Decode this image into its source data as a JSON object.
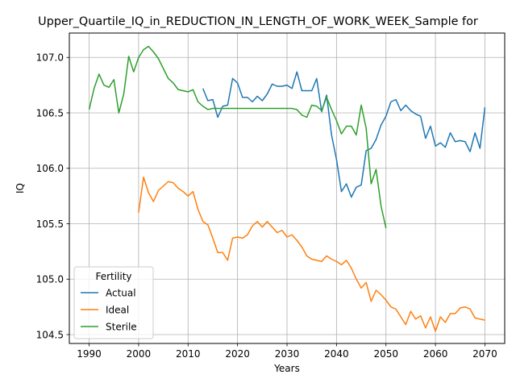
{
  "chart_data": {
    "type": "line",
    "title": "Upper_Quartile_IQ_in_REDUCTION_IN_LENGTH_OF_WORK_WEEK_Sample for",
    "xlabel": "Years",
    "ylabel": "IQ",
    "xlim": [
      1986,
      2074
    ],
    "ylim": [
      104.42,
      107.22
    ],
    "xticks": [
      1990,
      2000,
      2010,
      2020,
      2030,
      2040,
      2050,
      2060,
      2070
    ],
    "yticks": [
      104.5,
      105.0,
      105.5,
      106.0,
      106.5,
      107.0
    ],
    "ytick_labels": [
      "104.5",
      "105.0",
      "105.5",
      "106.0",
      "106.5",
      "107.0"
    ],
    "grid": true,
    "legend": {
      "title": "Fertility",
      "placement": "lower-left"
    },
    "series": [
      {
        "name": "Actual",
        "color": "#1f77b4",
        "x": [
          2013,
          2014,
          2015,
          2016,
          2017,
          2018,
          2019,
          2020,
          2021,
          2022,
          2023,
          2024,
          2025,
          2026,
          2027,
          2028,
          2029,
          2030,
          2031,
          2032,
          2033,
          2034,
          2035,
          2036,
          2037,
          2038,
          2039,
          2040,
          2041,
          2042,
          2043,
          2044,
          2045,
          2046,
          2047,
          2048,
          2049,
          2050,
          2051,
          2052,
          2053,
          2054,
          2055,
          2056,
          2057,
          2058,
          2059,
          2060,
          2061,
          2062,
          2063,
          2064,
          2065,
          2066,
          2067,
          2068,
          2069,
          2070
        ],
        "values": [
          106.72,
          106.61,
          106.62,
          106.46,
          106.56,
          106.57,
          106.81,
          106.77,
          106.64,
          106.64,
          106.6,
          106.65,
          106.61,
          106.67,
          106.76,
          106.74,
          106.74,
          106.75,
          106.72,
          106.87,
          106.7,
          106.7,
          106.7,
          106.81,
          106.51,
          106.66,
          106.3,
          106.08,
          105.79,
          105.86,
          105.74,
          105.83,
          105.85,
          106.16,
          106.18,
          106.26,
          106.39,
          106.47,
          106.6,
          106.62,
          106.52,
          106.57,
          106.52,
          106.49,
          106.47,
          106.27,
          106.38,
          106.2,
          106.23,
          106.19,
          106.32,
          106.24,
          106.25,
          106.24,
          106.15,
          106.32,
          106.18,
          106.55
        ]
      },
      {
        "name": "Ideal",
        "color": "#ff7f0e",
        "x": [
          2000,
          2001,
          2002,
          2003,
          2004,
          2005,
          2006,
          2007,
          2008,
          2009,
          2010,
          2011,
          2012,
          2013,
          2014,
          2015,
          2016,
          2017,
          2018,
          2019,
          2020,
          2021,
          2022,
          2023,
          2024,
          2025,
          2026,
          2027,
          2028,
          2029,
          2030,
          2031,
          2032,
          2033,
          2034,
          2035,
          2036,
          2037,
          2038,
          2039,
          2040,
          2041,
          2042,
          2043,
          2044,
          2045,
          2046,
          2047,
          2048,
          2049,
          2050,
          2051,
          2052,
          2053,
          2054,
          2055,
          2056,
          2057,
          2058,
          2059,
          2060,
          2061,
          2062,
          2063,
          2064,
          2065,
          2066,
          2067,
          2068,
          2069,
          2070
        ],
        "values": [
          105.6,
          105.92,
          105.78,
          105.7,
          105.8,
          105.84,
          105.88,
          105.87,
          105.82,
          105.79,
          105.75,
          105.79,
          105.63,
          105.52,
          105.49,
          105.37,
          105.24,
          105.24,
          105.17,
          105.37,
          105.38,
          105.37,
          105.4,
          105.48,
          105.52,
          105.47,
          105.52,
          105.47,
          105.42,
          105.44,
          105.38,
          105.4,
          105.35,
          105.29,
          105.21,
          105.18,
          105.17,
          105.16,
          105.21,
          105.18,
          105.16,
          105.13,
          105.17,
          105.1,
          105.0,
          104.92,
          104.97,
          104.8,
          104.9,
          104.86,
          104.81,
          104.75,
          104.73,
          104.66,
          104.59,
          104.71,
          104.64,
          104.67,
          104.56,
          104.66,
          104.53,
          104.66,
          104.61,
          104.69,
          104.69,
          104.74,
          104.75,
          104.73,
          104.65,
          104.64,
          104.63
        ]
      },
      {
        "name": "Sterile",
        "color": "#2ca02c",
        "x": [
          1990,
          1991,
          1992,
          1993,
          1994,
          1995,
          1996,
          1997,
          1998,
          1999,
          2000,
          2001,
          2002,
          2003,
          2004,
          2005,
          2006,
          2007,
          2008,
          2009,
          2010,
          2011,
          2012,
          2013,
          2014,
          2015,
          2016,
          2017,
          2018,
          2019,
          2020,
          2021,
          2022,
          2023,
          2024,
          2025,
          2026,
          2027,
          2028,
          2029,
          2030,
          2031,
          2032,
          2033,
          2034,
          2035,
          2036,
          2037,
          2038,
          2039,
          2040,
          2041,
          2042,
          2043,
          2044,
          2045,
          2046,
          2047,
          2048,
          2049,
          2050
        ],
        "values": [
          106.53,
          106.72,
          106.85,
          106.75,
          106.73,
          106.8,
          106.5,
          106.67,
          107.01,
          106.87,
          107.0,
          107.07,
          107.1,
          107.05,
          106.99,
          106.9,
          106.81,
          106.77,
          106.71,
          106.7,
          106.69,
          106.71,
          106.6,
          106.56,
          106.53,
          106.54,
          106.54,
          106.54,
          106.54,
          106.54,
          106.54,
          106.54,
          106.54,
          106.54,
          106.54,
          106.54,
          106.54,
          106.54,
          106.54,
          106.54,
          106.54,
          106.54,
          106.53,
          106.48,
          106.46,
          106.57,
          106.56,
          106.52,
          106.64,
          106.53,
          106.43,
          106.31,
          106.38,
          106.38,
          106.3,
          106.57,
          106.36,
          105.86,
          105.99,
          105.66,
          105.46
        ]
      }
    ]
  }
}
